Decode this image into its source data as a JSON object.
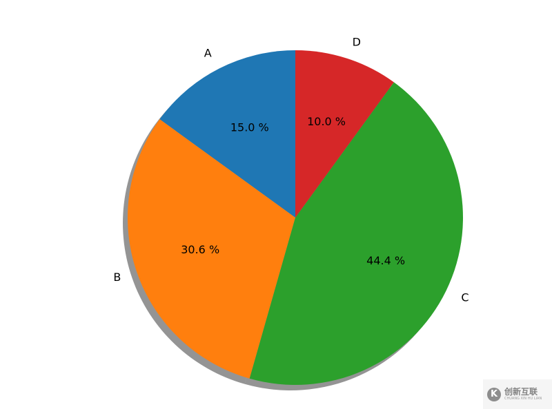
{
  "chart_data": {
    "type": "pie",
    "title": "",
    "categories": [
      "A",
      "B",
      "C",
      "D"
    ],
    "values": [
      15.0,
      30.6,
      44.4,
      10.0
    ],
    "value_labels": [
      "15.0 %",
      "30.6 %",
      "44.4 %",
      "10.0 %"
    ],
    "colors": [
      "#1f77b4",
      "#ff7f0e",
      "#2ca02c",
      "#d62728"
    ],
    "start_angle_deg": 90,
    "direction": "counterclockwise",
    "shadow": true,
    "legend": "none"
  },
  "watermark": {
    "icon_glyph": "K",
    "text": "创新互联",
    "subtext": "CHUANG XIN HU LIAN"
  }
}
